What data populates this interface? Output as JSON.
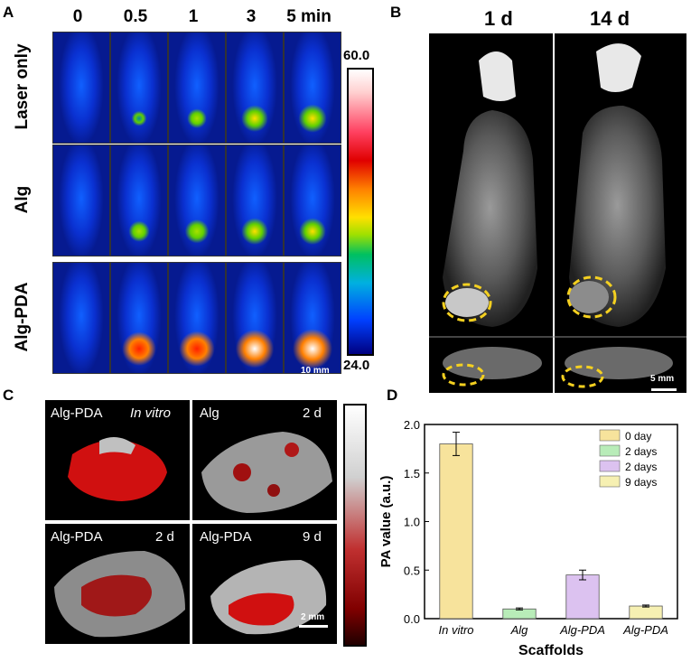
{
  "panel_a": {
    "label": "A",
    "time_headers": [
      "0",
      "0.5",
      "1",
      "3",
      "5 min"
    ],
    "rows": [
      "Laser only",
      "Alg",
      "Alg-PDA"
    ],
    "colorbar_max": "60.0",
    "colorbar_min": "24.0",
    "scale": "10 mm"
  },
  "panel_b": {
    "label": "B",
    "headers": [
      "1 d",
      "14 d"
    ],
    "scale": "5 mm"
  },
  "panel_c": {
    "label": "C",
    "tiles": [
      {
        "left": "Alg-PDA",
        "right": "In vitro"
      },
      {
        "left": "Alg",
        "right": "2 d"
      },
      {
        "left": "Alg-PDA",
        "right": "2 d"
      },
      {
        "left": "Alg-PDA",
        "right": "9 d"
      }
    ],
    "scale": "2 mm"
  },
  "panel_d": {
    "label": "D",
    "chart_data": {
      "type": "bar",
      "categories": [
        "In vitro",
        "Alg",
        "Alg-PDA",
        "Alg-PDA"
      ],
      "values": [
        1.8,
        0.1,
        0.45,
        0.13
      ],
      "errors": [
        0.12,
        0.01,
        0.05,
        0.01
      ],
      "legend": [
        "0 day",
        "2 days",
        "2 days",
        "9 days"
      ],
      "colors": [
        "#f7e39c",
        "#b8ecb8",
        "#dcc2f0",
        "#f6f0b2"
      ],
      "xlabel": "Scaffolds",
      "ylabel": "PA value (a.u.)",
      "ylim": [
        0,
        2.0
      ],
      "yticks": [
        "0.0",
        "0.5",
        "1.0",
        "1.5",
        "2.0"
      ],
      "legend_position": "top-right",
      "grid": false
    }
  }
}
